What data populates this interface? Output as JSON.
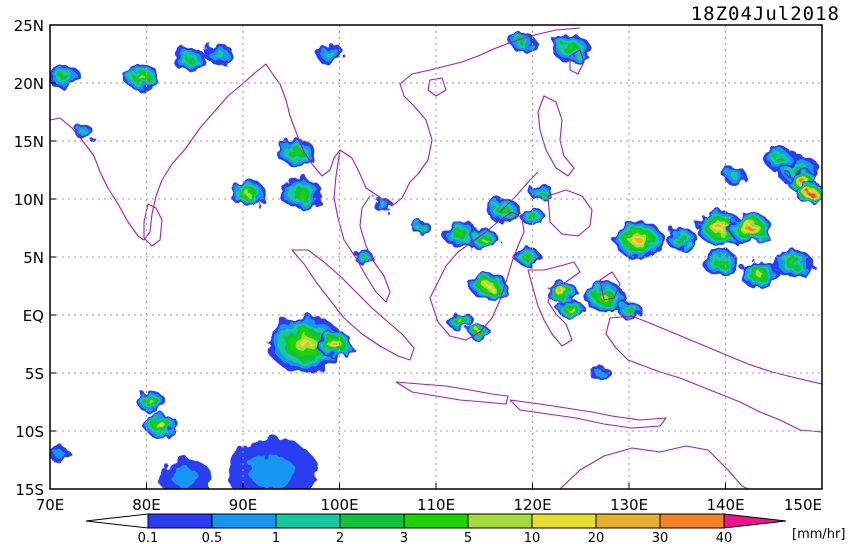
{
  "title": {
    "timestamp": "18Z04Jul2018"
  },
  "map": {
    "lon_range": [
      70,
      150
    ],
    "lat_range": [
      -15,
      25
    ],
    "grid": "dotted",
    "coastline_color": "#a020b0",
    "lat_labels": [
      "25N",
      "20N",
      "15N",
      "10N",
      "5N",
      "EQ",
      "5S",
      "10S",
      "15S"
    ],
    "lon_labels": [
      "70E",
      "80E",
      "90E",
      "100E",
      "110E",
      "120E",
      "130E",
      "140E",
      "150E"
    ]
  },
  "colorbar": {
    "unit_label": "[mm/hr]",
    "levels": [
      "0.1",
      "0.5",
      "1",
      "2",
      "3",
      "5",
      "10",
      "20",
      "30",
      "40"
    ],
    "colors": [
      "#2b3cf0",
      "#1596f0",
      "#16c8a0",
      "#10c23c",
      "#1ed200",
      "#a2dc3c",
      "#e6dc32",
      "#e6af2d",
      "#f08228",
      "#f03c3c",
      "#f0148c"
    ]
  },
  "rain_areas": [
    {
      "lon": 71.5,
      "lat": 20.5,
      "r": 1.4,
      "level": 3
    },
    {
      "lon": 73.5,
      "lat": 15.8,
      "r": 0.8,
      "level": 2
    },
    {
      "lon": 79.5,
      "lat": 20.5,
      "r": 1.5,
      "level": 5
    },
    {
      "lon": 84.5,
      "lat": 22.0,
      "r": 1.4,
      "level": 3
    },
    {
      "lon": 87.5,
      "lat": 22.5,
      "r": 1.2,
      "level": 2
    },
    {
      "lon": 90.5,
      "lat": 10.5,
      "r": 1.5,
      "level": 5
    },
    {
      "lon": 95.5,
      "lat": 14.0,
      "r": 1.6,
      "level": 4
    },
    {
      "lon": 96.0,
      "lat": 10.5,
      "r": 1.8,
      "level": 4
    },
    {
      "lon": 99.0,
      "lat": 22.5,
      "r": 1.2,
      "level": 2
    },
    {
      "lon": 96.5,
      "lat": -2.5,
      "r": 3.2,
      "level": 6
    },
    {
      "lon": 99.5,
      "lat": -2.5,
      "r": 1.5,
      "level": 7
    },
    {
      "lon": 80.5,
      "lat": -7.5,
      "r": 1.2,
      "level": 5
    },
    {
      "lon": 81.5,
      "lat": -9.5,
      "r": 1.4,
      "level": 6
    },
    {
      "lon": 93.0,
      "lat": -13.5,
      "r": 3.8,
      "level": 1
    },
    {
      "lon": 84.0,
      "lat": -14.0,
      "r": 2.2,
      "level": 1
    },
    {
      "lon": 71.0,
      "lat": -12.0,
      "r": 0.9,
      "level": 1
    },
    {
      "lon": 112.5,
      "lat": 7.0,
      "r": 1.5,
      "level": 4
    },
    {
      "lon": 115.0,
      "lat": 6.5,
      "r": 1.2,
      "level": 5
    },
    {
      "lon": 115.5,
      "lat": 2.5,
      "r": 1.6,
      "level": 6
    },
    {
      "lon": 112.5,
      "lat": -0.5,
      "r": 1.1,
      "level": 5
    },
    {
      "lon": 117.0,
      "lat": 9.0,
      "r": 1.4,
      "level": 4
    },
    {
      "lon": 123.0,
      "lat": 2.0,
      "r": 1.3,
      "level": 7
    },
    {
      "lon": 124.0,
      "lat": 0.5,
      "r": 1.1,
      "level": 6
    },
    {
      "lon": 127.5,
      "lat": 1.5,
      "r": 1.7,
      "level": 5
    },
    {
      "lon": 130.0,
      "lat": 0.5,
      "r": 1.0,
      "level": 4
    },
    {
      "lon": 127.0,
      "lat": -5.0,
      "r": 0.9,
      "level": 1
    },
    {
      "lon": 131.0,
      "lat": 6.5,
      "r": 2.1,
      "level": 7
    },
    {
      "lon": 135.5,
      "lat": 6.5,
      "r": 1.3,
      "level": 4
    },
    {
      "lon": 139.5,
      "lat": 7.5,
      "r": 2.0,
      "level": 7
    },
    {
      "lon": 142.5,
      "lat": 7.5,
      "r": 1.8,
      "level": 8
    },
    {
      "lon": 139.5,
      "lat": 4.5,
      "r": 1.5,
      "level": 4
    },
    {
      "lon": 143.5,
      "lat": 3.5,
      "r": 1.6,
      "level": 5
    },
    {
      "lon": 147.0,
      "lat": 4.5,
      "r": 1.6,
      "level": 4
    },
    {
      "lon": 147.5,
      "lat": 12.5,
      "r": 1.8,
      "level": 3
    },
    {
      "lon": 148.0,
      "lat": 11.5,
      "r": 1.3,
      "level": 8
    },
    {
      "lon": 148.8,
      "lat": 10.5,
      "r": 1.2,
      "level": 9
    },
    {
      "lon": 145.5,
      "lat": 13.5,
      "r": 1.3,
      "level": 3
    },
    {
      "lon": 141.0,
      "lat": 12.0,
      "r": 1.0,
      "level": 2
    },
    {
      "lon": 124.0,
      "lat": 23.0,
      "r": 1.6,
      "level": 4
    },
    {
      "lon": 119.0,
      "lat": 23.5,
      "r": 1.1,
      "level": 3
    },
    {
      "lon": 119.5,
      "lat": 5.0,
      "r": 1.1,
      "level": 4
    },
    {
      "lon": 121.0,
      "lat": 10.5,
      "r": 1.0,
      "level": 3
    },
    {
      "lon": 120.0,
      "lat": 8.5,
      "r": 1.0,
      "level": 4
    },
    {
      "lon": 108.5,
      "lat": 7.5,
      "r": 0.8,
      "level": 3
    },
    {
      "lon": 102.5,
      "lat": 5.0,
      "r": 0.8,
      "level": 3
    },
    {
      "lon": 114.5,
      "lat": -1.5,
      "r": 0.9,
      "level": 5
    },
    {
      "lon": 104.5,
      "lat": 9.5,
      "r": 0.8,
      "level": 2
    }
  ]
}
